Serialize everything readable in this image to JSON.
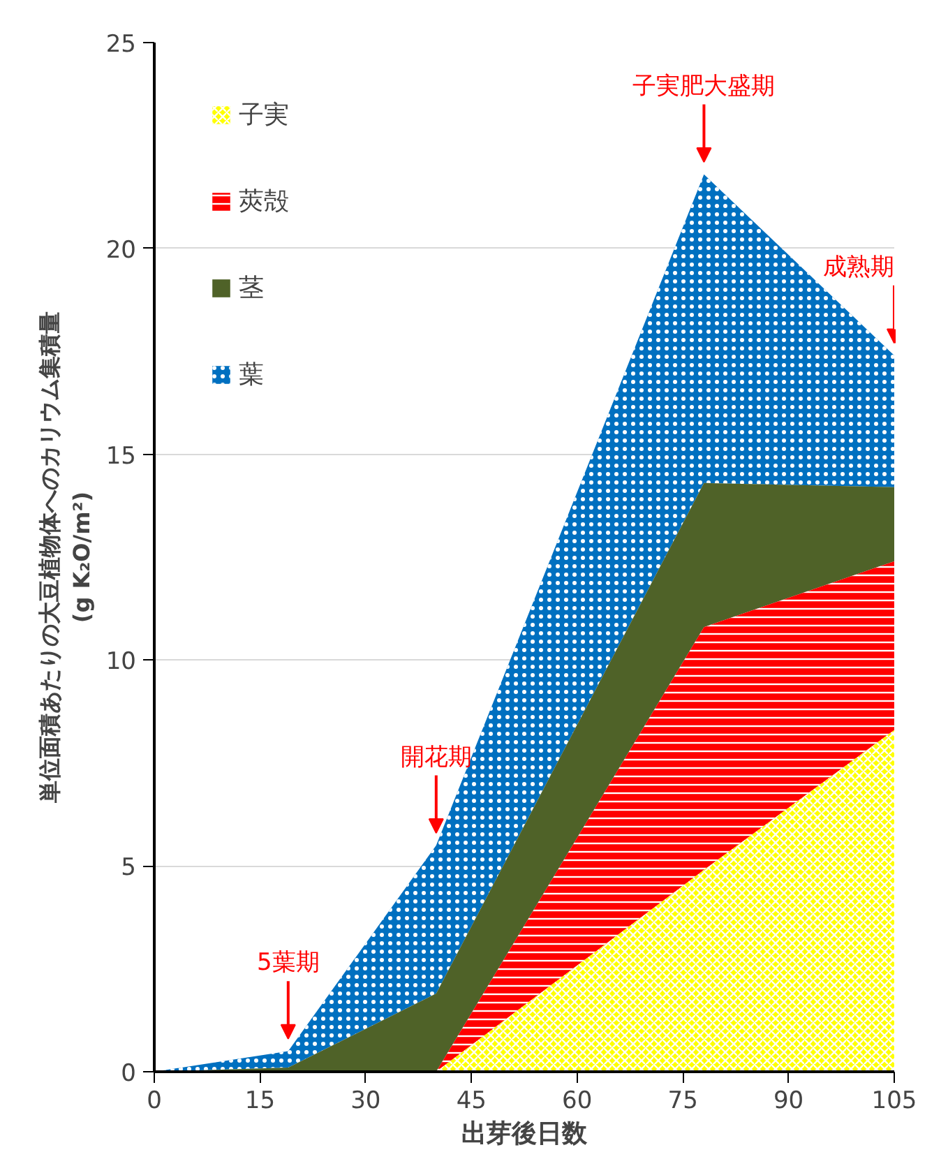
{
  "chart_data": {
    "type": "area",
    "stacked": true,
    "xlabel": "出芽後日数",
    "ylabel": "単位面積あたりの大豆植物体へのカリウム集積量\n(g K₂O/m²)",
    "x": [
      0,
      19,
      40,
      78,
      105
    ],
    "series": [
      {
        "name": "子実",
        "color": "#ffff00",
        "values": [
          0,
          0,
          0,
          4.9,
          8.3
        ]
      },
      {
        "name": "莢殻",
        "color": "#ff0000",
        "values": [
          0,
          0,
          0,
          5.9,
          4.1
        ]
      },
      {
        "name": "茎",
        "color": "#4f6228",
        "values": [
          0,
          0.1,
          1.9,
          3.5,
          1.8
        ]
      },
      {
        "name": "葉",
        "color": "#0070c0",
        "values": [
          0,
          0.4,
          3.6,
          7.5,
          3.2
        ]
      }
    ],
    "xlim": [
      0,
      105
    ],
    "xticks": [
      0,
      15,
      30,
      45,
      60,
      75,
      90,
      105
    ],
    "ylim": [
      0,
      25
    ],
    "yticks": [
      0,
      5,
      10,
      15,
      20,
      25
    ],
    "grid": "y",
    "legend": "top left",
    "annotations": [
      {
        "text": "5葉期",
        "x": 19,
        "y": 0.5
      },
      {
        "text": "開花期",
        "x": 40,
        "y": 5.5
      },
      {
        "text": "子実肥大盛期",
        "x": 78,
        "y": 21.8
      },
      {
        "text": "成熟期",
        "x": 105,
        "y": 17.4
      }
    ]
  }
}
